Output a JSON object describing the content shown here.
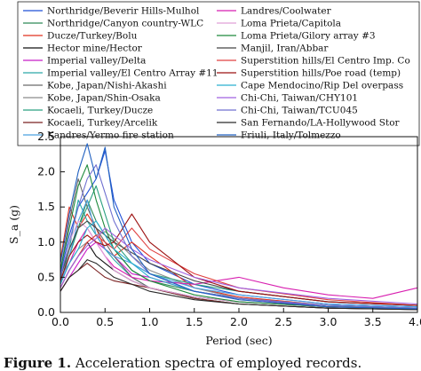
{
  "chart_data": {
    "type": "line",
    "title": "",
    "xlabel": "Period (sec)",
    "ylabel": "S_a (g)",
    "xlim": [
      0,
      4.0
    ],
    "ylim": [
      0,
      2.5
    ],
    "xticks": [
      "0.0",
      "0.5",
      "1.0",
      "1.5",
      "2.0",
      "2.5",
      "3.0",
      "3.5",
      "4.0"
    ],
    "yticks": [
      "0.0",
      "0.5",
      "1.0",
      "1.5",
      "2.0",
      "2.5"
    ],
    "grid": false,
    "legend_position": "top",
    "series": [
      {
        "name": "Northridge/Beverir Hills-Mulhol",
        "color": "#1f4fd6",
        "x": [
          0,
          0.1,
          0.2,
          0.3,
          0.4,
          0.5,
          0.6,
          0.8,
          1.0,
          1.5,
          2.0,
          3.0,
          4.0
        ],
        "y": [
          0.55,
          1.1,
          1.5,
          1.7,
          1.9,
          2.3,
          1.6,
          1.0,
          0.7,
          0.4,
          0.25,
          0.12,
          0.08
        ]
      },
      {
        "name": "Northridge/Canyon country-WLC",
        "color": "#2e8b57",
        "x": [
          0,
          0.1,
          0.2,
          0.3,
          0.4,
          0.5,
          0.6,
          0.8,
          1.0,
          1.5,
          2.0,
          3.0,
          4.0
        ],
        "y": [
          0.45,
          0.8,
          1.2,
          1.6,
          1.3,
          1.1,
          0.9,
          0.6,
          0.45,
          0.3,
          0.2,
          0.1,
          0.06
        ]
      },
      {
        "name": "Ducze/Turkey/Bolu",
        "color": "#e0301e",
        "x": [
          0,
          0.1,
          0.2,
          0.3,
          0.4,
          0.5,
          0.6,
          0.8,
          1.0,
          1.5,
          2.0,
          3.0,
          4.0
        ],
        "y": [
          0.75,
          1.5,
          1.2,
          1.4,
          1.2,
          0.9,
          0.8,
          1.0,
          0.8,
          0.35,
          0.22,
          0.1,
          0.06
        ]
      },
      {
        "name": "Hector mine/Hector",
        "color": "#111111",
        "x": [
          0,
          0.1,
          0.2,
          0.3,
          0.4,
          0.5,
          0.6,
          0.8,
          1.0,
          1.5,
          2.0,
          3.0,
          4.0
        ],
        "y": [
          0.35,
          0.6,
          0.8,
          1.0,
          0.8,
          0.7,
          0.6,
          0.45,
          0.35,
          0.22,
          0.15,
          0.08,
          0.05
        ]
      },
      {
        "name": "Imperial valley/Delta",
        "color": "#c81ec8",
        "x": [
          0,
          0.1,
          0.2,
          0.3,
          0.4,
          0.5,
          0.6,
          0.8,
          1.0,
          1.5,
          2.0,
          3.0,
          4.0
        ],
        "y": [
          0.3,
          0.5,
          0.7,
          0.9,
          1.0,
          0.9,
          0.8,
          0.55,
          0.5,
          0.3,
          0.2,
          0.08,
          0.05
        ]
      },
      {
        "name": "Imperial valley/El Centro Array #11",
        "color": "#2aa8a8",
        "x": [
          0,
          0.1,
          0.2,
          0.3,
          0.4,
          0.5,
          0.6,
          0.8,
          1.0,
          1.5,
          2.0,
          3.0,
          4.0
        ],
        "y": [
          0.4,
          0.9,
          1.6,
          1.3,
          1.1,
          0.9,
          0.75,
          0.5,
          0.35,
          0.2,
          0.12,
          0.06,
          0.04
        ]
      },
      {
        "name": "Kobe, Japan/Nishi-Akashi",
        "color": "#6a6a6a",
        "x": [
          0,
          0.1,
          0.2,
          0.3,
          0.4,
          0.5,
          0.6,
          0.8,
          1.0,
          1.5,
          2.0,
          3.0,
          4.0
        ],
        "y": [
          0.6,
          1.3,
          1.9,
          1.5,
          1.2,
          1.0,
          0.8,
          0.5,
          0.35,
          0.2,
          0.12,
          0.06,
          0.04
        ]
      },
      {
        "name": "Kobe, Japan/Shin-Osaka",
        "color": "#8a8a8a",
        "x": [
          0,
          0.1,
          0.2,
          0.3,
          0.4,
          0.5,
          0.6,
          0.8,
          1.0,
          1.5,
          2.0,
          3.0,
          4.0
        ],
        "y": [
          0.5,
          0.7,
          0.9,
          1.0,
          1.1,
          1.15,
          1.05,
          0.8,
          0.6,
          0.35,
          0.2,
          0.1,
          0.06
        ]
      },
      {
        "name": "Kocaeli, Turkey/Ducze",
        "color": "#2aa080",
        "x": [
          0,
          0.1,
          0.2,
          0.3,
          0.4,
          0.5,
          0.6,
          0.8,
          1.0,
          1.5,
          2.0,
          3.0,
          4.0
        ],
        "y": [
          0.45,
          0.8,
          1.2,
          1.5,
          1.8,
          1.4,
          1.0,
          0.7,
          0.55,
          0.4,
          0.3,
          0.15,
          0.1
        ]
      },
      {
        "name": "Kocaeli, Turkey/Arcelik",
        "color": "#7a2020",
        "x": [
          0,
          0.1,
          0.2,
          0.3,
          0.4,
          0.5,
          0.6,
          0.8,
          1.0,
          1.5,
          2.0,
          3.0,
          4.0
        ],
        "y": [
          0.3,
          0.5,
          0.6,
          0.7,
          0.6,
          0.5,
          0.45,
          0.4,
          0.35,
          0.2,
          0.12,
          0.06,
          0.04
        ]
      },
      {
        "name": "Kandres/Yermo fire station",
        "color": "#4aa0e0",
        "x": [
          0,
          0.1,
          0.2,
          0.3,
          0.4,
          0.5,
          0.6,
          0.8,
          1.0,
          1.5,
          2.0,
          3.0,
          4.0
        ],
        "y": [
          0.4,
          0.8,
          1.3,
          1.6,
          1.1,
          0.9,
          0.8,
          0.7,
          0.55,
          0.35,
          0.25,
          0.12,
          0.08
        ]
      },
      {
        "name": "Landres/Coolwater",
        "color": "#d81fb0",
        "x": [
          0,
          0.1,
          0.2,
          0.3,
          0.4,
          0.5,
          0.6,
          0.8,
          1.0,
          1.5,
          2.0,
          2.5,
          3.0,
          3.5,
          4.0
        ],
        "y": [
          0.4,
          0.7,
          1.0,
          1.2,
          1.0,
          0.8,
          0.65,
          0.5,
          0.45,
          0.4,
          0.5,
          0.35,
          0.25,
          0.2,
          0.35
        ]
      },
      {
        "name": "Loma Prieta/Capitola",
        "color": "#e0a0d8",
        "x": [
          0,
          0.1,
          0.2,
          0.3,
          0.4,
          0.5,
          0.6,
          0.8,
          1.0,
          1.5,
          2.0,
          3.0,
          4.0
        ],
        "y": [
          0.5,
          1.0,
          1.3,
          1.2,
          1.0,
          0.8,
          0.6,
          0.45,
          0.35,
          0.22,
          0.15,
          0.08,
          0.05
        ]
      },
      {
        "name": "Loma Prieta/Gilory array #3",
        "color": "#1e8a3c",
        "x": [
          0,
          0.1,
          0.2,
          0.3,
          0.4,
          0.5,
          0.6,
          0.8,
          1.0,
          1.5,
          2.0,
          3.0,
          4.0
        ],
        "y": [
          0.6,
          1.2,
          1.8,
          2.1,
          1.6,
          1.2,
          0.9,
          0.6,
          0.45,
          0.25,
          0.15,
          0.08,
          0.05
        ]
      },
      {
        "name": "Manjil, Iran/Abbar",
        "color": "#444444",
        "x": [
          0,
          0.1,
          0.2,
          0.3,
          0.4,
          0.5,
          0.6,
          0.8,
          1.0,
          1.5,
          2.0,
          3.0,
          4.0
        ],
        "y": [
          0.5,
          0.9,
          1.2,
          1.3,
          1.2,
          1.1,
          1.0,
          0.85,
          0.7,
          0.45,
          0.3,
          0.15,
          0.1
        ]
      },
      {
        "name": "Superstition hills/El Centro Imp. Co",
        "color": "#e04040",
        "x": [
          0,
          0.1,
          0.2,
          0.3,
          0.4,
          0.5,
          0.6,
          0.8,
          1.0,
          1.5,
          2.0,
          3.0,
          4.0
        ],
        "y": [
          0.35,
          0.6,
          0.8,
          1.0,
          1.1,
          1.0,
          0.9,
          1.2,
          0.9,
          0.55,
          0.35,
          0.18,
          0.1
        ]
      },
      {
        "name": "Superstition hills/Poe road (temp)",
        "color": "#9c1010",
        "x": [
          0,
          0.1,
          0.2,
          0.3,
          0.4,
          0.5,
          0.6,
          0.8,
          1.0,
          1.5,
          2.0,
          3.0,
          4.0
        ],
        "y": [
          0.45,
          0.8,
          1.0,
          1.1,
          1.0,
          0.95,
          1.0,
          1.4,
          1.0,
          0.5,
          0.3,
          0.15,
          0.1
        ]
      },
      {
        "name": "Cape Mendocino/Rip Del overpass",
        "color": "#2ab0d0",
        "x": [
          0,
          0.1,
          0.2,
          0.3,
          0.4,
          0.5,
          0.6,
          0.8,
          1.0,
          1.5,
          2.0,
          3.0,
          4.0
        ],
        "y": [
          0.4,
          0.7,
          0.9,
          1.2,
          1.3,
          1.1,
          0.9,
          0.7,
          0.5,
          0.3,
          0.2,
          0.1,
          0.06
        ]
      },
      {
        "name": "Chi-Chi, Taiwan/CHY101",
        "color": "#a060e0",
        "x": [
          0,
          0.1,
          0.2,
          0.3,
          0.4,
          0.5,
          0.6,
          0.8,
          1.0,
          1.5,
          2.0,
          3.0,
          4.0
        ],
        "y": [
          0.35,
          0.6,
          0.8,
          0.95,
          1.05,
          1.2,
          1.1,
          0.9,
          0.75,
          0.5,
          0.35,
          0.2,
          0.12
        ]
      },
      {
        "name": "Chi-Chi, Taiwan/TCU045",
        "color": "#7070d0",
        "x": [
          0,
          0.1,
          0.2,
          0.3,
          0.4,
          0.5,
          0.6,
          0.8,
          1.0,
          1.5,
          2.0,
          3.0,
          4.0
        ],
        "y": [
          0.5,
          1.0,
          1.5,
          1.9,
          2.1,
          1.7,
          1.3,
          0.8,
          0.55,
          0.3,
          0.2,
          0.1,
          0.06
        ]
      },
      {
        "name": "San Fernando/LA-Hollywood Stor",
        "color": "#2a2a2a",
        "x": [
          0,
          0.1,
          0.2,
          0.3,
          0.4,
          0.5,
          0.6,
          0.8,
          1.0,
          1.5,
          2.0,
          3.0,
          4.0
        ],
        "y": [
          0.3,
          0.5,
          0.6,
          0.75,
          0.7,
          0.6,
          0.5,
          0.4,
          0.3,
          0.18,
          0.12,
          0.06,
          0.04
        ]
      },
      {
        "name": "Friuli, Italy/Tolmezzo",
        "color": "#2060c0",
        "x": [
          0,
          0.1,
          0.2,
          0.3,
          0.4,
          0.5,
          0.6,
          0.8,
          1.0,
          1.5,
          2.0,
          3.0,
          4.0
        ],
        "y": [
          0.7,
          1.4,
          2.0,
          2.4,
          1.9,
          2.35,
          1.5,
          0.9,
          0.55,
          0.3,
          0.18,
          0.08,
          0.05
        ]
      }
    ]
  },
  "caption": {
    "label": "Figure 1.",
    "text": "Acceleration spectra of employed records."
  }
}
